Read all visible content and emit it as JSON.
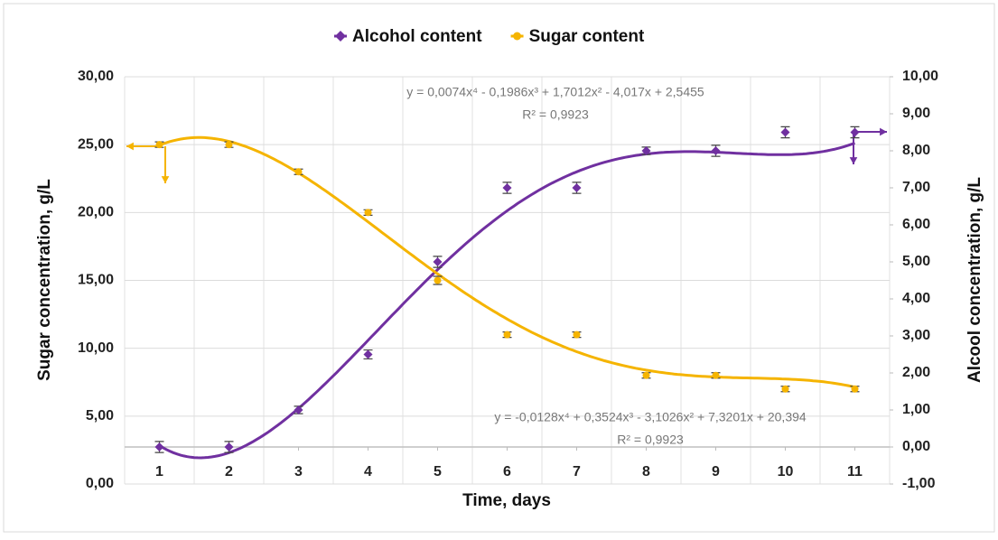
{
  "chart_data": {
    "type": "scatter",
    "x": [
      1,
      2,
      3,
      4,
      5,
      6,
      7,
      8,
      9,
      10,
      11
    ],
    "xlim": [
      0.5,
      11.5
    ],
    "xticks": [
      1,
      2,
      3,
      4,
      5,
      6,
      7,
      8,
      9,
      10,
      11
    ],
    "x_label": "Time, days",
    "y_label": "Sugar concentration, g/L",
    "y2_label": "Alcool concentration, g/L",
    "ylim": [
      0,
      30
    ],
    "yticks": [
      {
        "value": 0,
        "label": "0,00"
      },
      {
        "value": 5,
        "label": "5,00"
      },
      {
        "value": 10,
        "label": "10,00"
      },
      {
        "value": 15,
        "label": "15,00"
      },
      {
        "value": 20,
        "label": "20,00"
      },
      {
        "value": 25,
        "label": "25,00"
      },
      {
        "value": 30,
        "label": "30,00"
      }
    ],
    "y2lim": [
      -1,
      10
    ],
    "y2ticks": [
      {
        "value": -1,
        "label": "-1,00"
      },
      {
        "value": 0,
        "label": "0,00"
      },
      {
        "value": 1,
        "label": "1,00"
      },
      {
        "value": 2,
        "label": "2,00"
      },
      {
        "value": 3,
        "label": "3,00"
      },
      {
        "value": 4,
        "label": "4,00"
      },
      {
        "value": 5,
        "label": "5,00"
      },
      {
        "value": 6,
        "label": "6,00"
      },
      {
        "value": 7,
        "label": "7,00"
      },
      {
        "value": 8,
        "label": "8,00"
      },
      {
        "value": 9,
        "label": "9,00"
      },
      {
        "value": 10,
        "label": "10,00"
      }
    ],
    "grid": true,
    "legend": "top",
    "series": [
      {
        "name": "Alcohol content",
        "color": "#7030a0",
        "marker": "diamond",
        "axis": "y2",
        "values": [
          0,
          0,
          1,
          2.5,
          5,
          7,
          7,
          8,
          8,
          8.5,
          8.5
        ],
        "errors": [
          0.15,
          0.15,
          0.1,
          0.12,
          0.15,
          0.15,
          0.15,
          0.1,
          0.15,
          0.15,
          0.15
        ],
        "trendline": {
          "coefficients": [
            0.0074,
            -0.1986,
            1.7012,
            -4.017,
            2.5455
          ],
          "equation": "y = 0,0074x⁴ - 0,1986x³ + 1,7012x² - 4,017x + 2,5455",
          "r2": "R² = 0,9923"
        }
      },
      {
        "name": "Sugar content",
        "color": "#f5b400",
        "marker": "circle",
        "values": [
          25,
          25,
          23,
          20,
          15,
          11,
          11,
          8,
          8,
          7,
          7
        ],
        "errors": [
          0.2,
          0.2,
          0.2,
          0.2,
          0.3,
          0.2,
          0.2,
          0.2,
          0.2,
          0.2,
          0.2
        ],
        "trendline": {
          "coefficients": [
            -0.0128,
            0.3524,
            -3.1026,
            7.3201,
            20.394
          ],
          "equation": "y = -0,0128x⁴ + 0,3524x³ - 3,1026x² + 7,3201x + 20,394",
          "r2": "R² = 0,9923"
        }
      }
    ]
  }
}
